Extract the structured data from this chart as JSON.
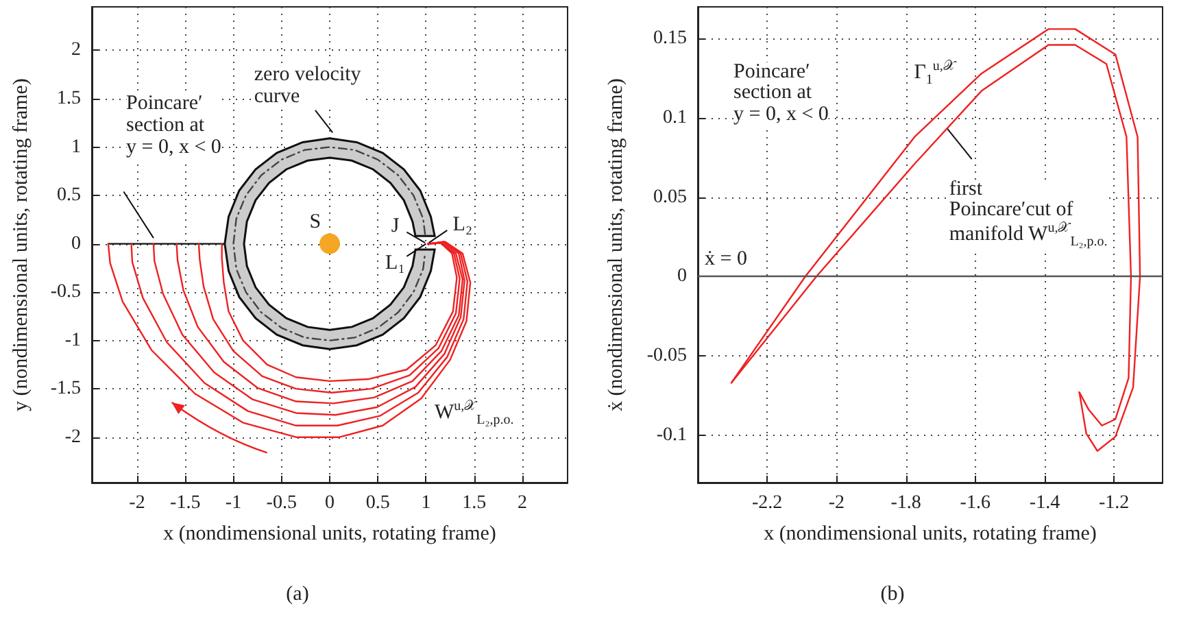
{
  "chart_data": [
    {
      "type": "line",
      "title": "(a)",
      "xlabel": "x (nondimensional units, rotating frame)",
      "ylabel": "y (nondimensional units, rotating frame)",
      "xlim": [
        -2.47,
        2.47
      ],
      "ylim": [
        -2.47,
        2.45
      ],
      "xticks": [
        -2,
        -1.5,
        -1,
        -0.5,
        0,
        0.5,
        1,
        1.5,
        2
      ],
      "yticks": [
        -2,
        -1.5,
        -1,
        -0.5,
        0,
        0.5,
        1,
        1.5,
        2
      ],
      "grid": true,
      "series": [
        {
          "type": "area",
          "color": "#cccccc",
          "x": [
            1.09,
            1.05,
            0.94,
            0.77,
            0.55,
            0.28,
            0,
            -0.28,
            -0.55,
            -0.77,
            -0.94,
            -1.05,
            -1.09,
            -1.05,
            -0.94,
            -0.77,
            -0.55,
            -0.28,
            0,
            0.28,
            0.55,
            0.77,
            0.94,
            1.05,
            1.09,
            0.89,
            0.86,
            0.77,
            0.63,
            0.45,
            0.23,
            0,
            -0.23,
            -0.45,
            -0.63,
            -0.77,
            -0.86,
            -0.89,
            -0.86,
            -0.77,
            -0.63,
            -0.45,
            -0.23,
            0,
            0.23,
            0.45,
            0.63,
            0.77,
            0.86,
            0.89
          ],
          "values": [
            0.08,
            0.28,
            0.55,
            0.77,
            0.94,
            1.05,
            1.09,
            1.05,
            0.94,
            0.77,
            0.55,
            0.28,
            0,
            -0.28,
            -0.55,
            -0.77,
            -0.94,
            -1.05,
            -1.09,
            -1.05,
            -0.94,
            -0.77,
            -0.55,
            -0.28,
            -0.06,
            -0.06,
            -0.23,
            -0.45,
            -0.63,
            -0.77,
            -0.86,
            -0.89,
            -0.86,
            -0.77,
            -0.63,
            -0.45,
            -0.23,
            0,
            0.23,
            0.45,
            0.63,
            0.77,
            0.86,
            0.89,
            0.86,
            0.77,
            0.63,
            0.45,
            0.23,
            0.08
          ]
        },
        {
          "color": "#444444",
          "line_style": "dashed",
          "x": [
            0.99,
            0.97,
            0.87,
            0.71,
            0.5,
            0.26,
            0,
            -0.26,
            -0.5,
            -0.71,
            -0.87,
            -0.97,
            -1,
            -0.97,
            -0.87,
            -0.71,
            -0.5,
            -0.26,
            0,
            0.26,
            0.5,
            0.71,
            0.87,
            0.97,
            0.99
          ],
          "values": [
            0.1,
            0.26,
            0.5,
            0.71,
            0.87,
            0.97,
            1,
            0.97,
            0.87,
            0.71,
            0.5,
            0.26,
            0,
            -0.26,
            -0.5,
            -0.71,
            -0.87,
            -0.97,
            -1,
            -0.97,
            -0.87,
            -0.71,
            -0.5,
            -0.26,
            -0.1
          ]
        },
        {
          "color": "#111111",
          "x": [
            -2.3,
            -1.1
          ],
          "values": [
            0,
            0
          ]
        },
        {
          "type": "scatter",
          "color": "#f5a623",
          "marker": "circle",
          "x": [
            0
          ],
          "values": [
            0
          ]
        },
        {
          "color": "#ee2222",
          "x": [
            1.02,
            1.15,
            1.27,
            1.32,
            1.28,
            1.1,
            0.8,
            0.4,
            0,
            -0.35,
            -0.65,
            -0.9,
            -1.05,
            -1.1,
            -1.12,
            -1.12
          ],
          "values": [
            0,
            0.01,
            -0.1,
            -0.35,
            -0.7,
            -1.05,
            -1.3,
            -1.4,
            -1.42,
            -1.38,
            -1.25,
            -1.0,
            -0.7,
            -0.4,
            -0.15,
            0
          ]
        },
        {
          "color": "#ee2222",
          "x": [
            1.02,
            1.16,
            1.29,
            1.35,
            1.31,
            1.13,
            0.83,
            0.43,
            0.02,
            -0.35,
            -0.7,
            -1.0,
            -1.21,
            -1.31,
            -1.35,
            -1.36
          ],
          "values": [
            0,
            0.01,
            -0.1,
            -0.36,
            -0.72,
            -1.08,
            -1.36,
            -1.5,
            -1.54,
            -1.5,
            -1.37,
            -1.11,
            -0.78,
            -0.44,
            -0.16,
            0
          ]
        },
        {
          "color": "#ee2222",
          "x": [
            1.02,
            1.17,
            1.31,
            1.38,
            1.34,
            1.16,
            0.86,
            0.46,
            0.04,
            -0.35,
            -0.75,
            -1.1,
            -1.37,
            -1.52,
            -1.58,
            -1.59
          ],
          "values": [
            0,
            0.01,
            -0.1,
            -0.37,
            -0.74,
            -1.11,
            -1.42,
            -1.59,
            -1.65,
            -1.63,
            -1.49,
            -1.22,
            -0.86,
            -0.48,
            -0.17,
            0
          ]
        },
        {
          "color": "#ee2222",
          "x": [
            1.02,
            1.18,
            1.34,
            1.4,
            1.36,
            1.19,
            0.89,
            0.49,
            0.06,
            -0.35,
            -0.8,
            -1.2,
            -1.53,
            -1.73,
            -1.82,
            -1.83
          ],
          "values": [
            0,
            0.02,
            -0.1,
            -0.38,
            -0.76,
            -1.14,
            -1.48,
            -1.69,
            -1.77,
            -1.75,
            -1.61,
            -1.33,
            -0.94,
            -0.52,
            -0.18,
            0
          ]
        },
        {
          "color": "#ee2222",
          "x": [
            1.02,
            1.19,
            1.36,
            1.43,
            1.39,
            1.22,
            0.92,
            0.52,
            0.08,
            -0.35,
            -0.85,
            -1.3,
            -1.69,
            -1.94,
            -2.05,
            -2.06
          ],
          "values": [
            0,
            0.02,
            -0.1,
            -0.39,
            -0.78,
            -1.17,
            -1.54,
            -1.78,
            -1.88,
            -1.88,
            -1.73,
            -1.44,
            -1.02,
            -0.56,
            -0.19,
            0
          ]
        },
        {
          "color": "#ee2222",
          "x": [
            1.02,
            1.2,
            1.38,
            1.46,
            1.42,
            1.25,
            0.95,
            0.55,
            0.1,
            -0.35,
            -0.9,
            -1.4,
            -1.85,
            -2.15,
            -2.28,
            -2.3
          ],
          "values": [
            0,
            0.02,
            -0.1,
            -0.4,
            -0.8,
            -1.2,
            -1.6,
            -1.88,
            -2.0,
            -2.0,
            -1.85,
            -1.55,
            -1.1,
            -0.6,
            -0.2,
            0
          ]
        }
      ],
      "annotations": [
        "zero velocity\ncurve",
        "Poincare′\nsection at\ny = 0, x < 0",
        "S",
        "J",
        "L₂",
        "L₁",
        "W$^{u,𝒳}$$_{L₂,p.o.}$"
      ]
    },
    {
      "type": "line",
      "title": "(b)",
      "xlabel": "x (nondimensional units, rotating frame)",
      "ylabel": "ẋ (nondimensional units, rotating frame)",
      "xlim": [
        -2.4,
        -1.06
      ],
      "ylim": [
        -0.13,
        0.17
      ],
      "xticks": [
        -2.2,
        -2,
        -1.8,
        -1.6,
        -1.4,
        -1.2
      ],
      "yticks": [
        -0.1,
        -0.05,
        0,
        0.05,
        0.1,
        0.15
      ],
      "grid": true,
      "series": [
        {
          "color": "#ee2222",
          "x": [
            -2.303,
            -2.09,
            -1.775,
            -1.582,
            -1.389,
            -1.312,
            -1.196,
            -1.132,
            -1.125,
            -1.145,
            -1.196,
            -1.248,
            -1.28,
            -1.3
          ],
          "values": [
            -0.067,
            0,
            0.088,
            0.128,
            0.156,
            0.156,
            0.14,
            0.088,
            0,
            -0.07,
            -0.101,
            -0.11,
            -0.099,
            -0.073
          ]
        },
        {
          "color": "#ee2222",
          "x": [
            -1.3,
            -1.273,
            -1.235,
            -1.196,
            -1.158,
            -1.151,
            -1.164,
            -1.222,
            -1.312,
            -1.389,
            -1.582,
            -1.775,
            -2.058,
            -2.303
          ],
          "values": [
            -0.073,
            -0.084,
            -0.094,
            -0.09,
            -0.064,
            0,
            0.088,
            0.134,
            0.146,
            0.146,
            0.117,
            0.071,
            0,
            -0.067
          ]
        }
      ],
      "ref_lines": [
        {
          "axis": "y",
          "value": 0,
          "label": "ẋ = 0",
          "color": "#555555"
        }
      ],
      "annotations": [
        "Poincare′\nsection at\ny = 0, x < 0",
        "Γ$_{1}$$^{u,𝒳}$",
        "first\nPoincare′cut of\nmanifold W$^{u,𝒳}$$_{L₂,p.o.}$"
      ]
    }
  ]
}
